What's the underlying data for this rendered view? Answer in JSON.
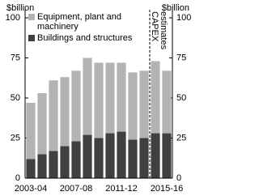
{
  "chart_data": {
    "type": "stacked_bar",
    "ylabel": "$billion",
    "y2label": "$billion",
    "categories": [
      "2003-04",
      null,
      null,
      null,
      "2007-08",
      null,
      null,
      null,
      "2011-12",
      null,
      null,
      null,
      "2015-16"
    ],
    "series": [
      {
        "name": "Buildings and structures",
        "color": "#404040",
        "values": [
          12,
          15,
          17,
          20,
          23,
          27,
          25,
          28,
          29,
          24,
          25,
          28,
          28
        ]
      },
      {
        "name": "Equipment, plant and machinery",
        "color": "#b3b3b3",
        "values": [
          35,
          38,
          44,
          43,
          44,
          48,
          47,
          44,
          43,
          42,
          42,
          45,
          39
        ]
      }
    ],
    "ylim": [
      0,
      100
    ],
    "yticks": [
      0,
      25,
      50,
      75,
      100
    ],
    "y2lim": [
      0,
      100
    ],
    "y2ticks": [
      0,
      25,
      50,
      75,
      100
    ],
    "annotation": [
      "CAPEX",
      "estimates"
    ]
  }
}
